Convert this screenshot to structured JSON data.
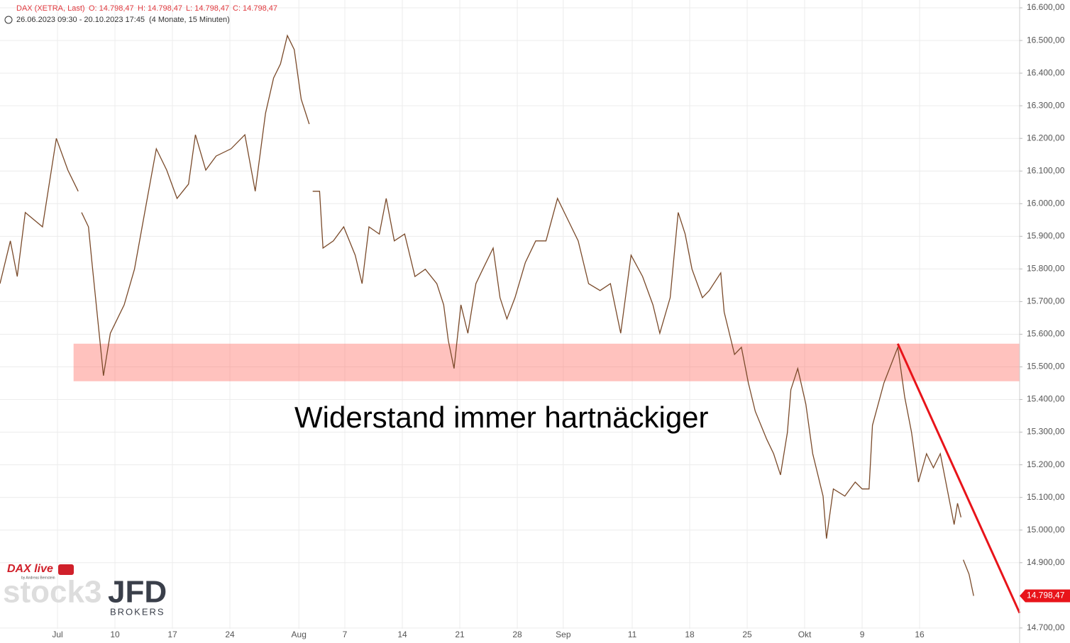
{
  "chart_data": {
    "type": "line",
    "title": "DAX (XETRA, Last)",
    "ohlc": [
      "O: 14.798,47",
      "H: 14.798,47",
      "L: 14.798,47",
      "C: 14.798,47"
    ],
    "subtitle": "26.06.2023 09:30 - 20.10.2023 17:45",
    "period": "(4 Monate, 15 Minuten)",
    "annotation": "Widerstand immer hartnäckiger",
    "logos": [
      "DAX live",
      "by Andreas Bernstein",
      "stock3",
      "JFD",
      "BROKERS"
    ],
    "x": [
      0,
      0.9,
      1.5,
      2.2,
      3.7,
      4.9,
      5.9,
      6.8,
      7.0,
      7.1,
      7.7,
      8.0,
      9.0,
      9.6,
      10.8,
      11.7,
      12.7,
      13.6,
      14.5,
      15.4,
      16.4,
      17.0,
      17.9,
      18.8,
      20.1,
      21.3,
      22.2,
      23.1,
      23.8,
      24.4,
      25.0,
      25.6,
      26.2,
      26.9,
      27.0,
      27.2,
      27.8,
      28.1,
      29.0,
      29.9,
      30.9,
      31.5,
      32.1,
      33.0,
      33.6,
      34.3,
      35.2,
      36.1,
      37.0,
      38.0,
      38.6,
      39.0,
      39.5,
      40.1,
      40.7,
      41.4,
      42.0,
      42.9,
      43.5,
      44.1,
      44.8,
      45.7,
      46.6,
      47.5,
      48.5,
      49.4,
      50.3,
      51.2,
      52.2,
      53.1,
      54.0,
      54.9,
      55.9,
      56.8,
      57.4,
      58.3,
      59.0,
      59.6,
      60.2,
      61.1,
      61.7,
      62.7,
      63.0,
      63.9,
      64.5,
      65.1,
      65.7,
      66.7,
      67.3,
      67.9,
      68.5,
      68.8,
      69.4,
      70.1,
      70.7,
      71.6,
      71.9,
      72.5,
      73.5,
      74.4,
      75.0,
      75.6,
      75.9,
      76.9,
      78.1,
      78.7,
      79.3,
      79.9,
      80.6,
      81.2,
      81.8,
      82.4,
      83.0,
      83.3,
      83.6,
      83.7,
      83.8,
      84.3,
      84.7
    ],
    "series": [
      {
        "color": "#7a4a2a",
        "values": [
          15755,
          15886,
          15777,
          15973,
          15929,
          16200,
          16103,
          16038,
          null,
          15973,
          15929,
          15820,
          15473,
          15603,
          15690,
          15799,
          15994,
          16168,
          16103,
          16016,
          16060,
          16211,
          16103,
          16146,
          16168,
          16211,
          16038,
          16277,
          16385,
          16428,
          16515,
          16472,
          16320,
          16244,
          null,
          16038,
          16038,
          15864,
          15886,
          15929,
          15842,
          15755,
          15929,
          15907,
          16016,
          15886,
          15907,
          15777,
          15799,
          15755,
          15690,
          15581,
          15495,
          15690,
          15603,
          15755,
          15799,
          15864,
          15712,
          15647,
          15712,
          15820,
          15886,
          15886,
          16016,
          15951,
          15886,
          15755,
          15734,
          15755,
          15603,
          15842,
          15777,
          15690,
          15603,
          15712,
          15973,
          15907,
          15799,
          15712,
          15734,
          15788,
          15668,
          15538,
          15560,
          15451,
          15364,
          15278,
          15234,
          15169,
          15299,
          15430,
          15495,
          15386,
          15234,
          15104,
          14974,
          15126,
          15104,
          15147,
          15126,
          15126,
          15321,
          15451,
          15560,
          15408,
          15299,
          15147,
          15234,
          15191,
          15234,
          15126,
          15017,
          15082,
          15039,
          null,
          14909,
          14865,
          14798.47
        ]
      }
    ],
    "last_value": 14798.47,
    "last_label": "14.798,47",
    "last_color": "#e8141a",
    "band": {
      "x": [
        6.4,
        88.7
      ],
      "y": [
        15456,
        15571
      ],
      "color": "rgba(255,120,110,0.45)"
    },
    "trendline": {
      "x": [
        78.1,
        88.7
      ],
      "y": [
        15571,
        14746
      ],
      "color": "#e8141a"
    },
    "xlim": [
      0,
      88.7
    ],
    "ylim": [
      14654,
      16624
    ],
    "grid": true,
    "xticks": [
      {
        "value": 5,
        "label": "Jul"
      },
      {
        "value": 10,
        "label": "10"
      },
      {
        "value": 15,
        "label": "17"
      },
      {
        "value": 20,
        "label": "24"
      },
      {
        "value": 26,
        "label": "Aug"
      },
      {
        "value": 30,
        "label": "7"
      },
      {
        "value": 35,
        "label": "14"
      },
      {
        "value": 40,
        "label": "21"
      },
      {
        "value": 45,
        "label": "28"
      },
      {
        "value": 49,
        "label": "Sep"
      },
      {
        "value": 55,
        "label": "11"
      },
      {
        "value": 60,
        "label": "18"
      },
      {
        "value": 65,
        "label": "25"
      },
      {
        "value": 70,
        "label": "Okt"
      },
      {
        "value": 75,
        "label": "9"
      },
      {
        "value": 80,
        "label": "16"
      }
    ],
    "yticks": [
      {
        "value": 14700,
        "label": "14.700,00"
      },
      {
        "value": 14900,
        "label": "14.900,00"
      },
      {
        "value": 15000,
        "label": "15.000,00"
      },
      {
        "value": 15100,
        "label": "15.100,00"
      },
      {
        "value": 15200,
        "label": "15.200,00"
      },
      {
        "value": 15300,
        "label": "15.300,00"
      },
      {
        "value": 15400,
        "label": "15.400,00"
      },
      {
        "value": 15500,
        "label": "15.500,00"
      },
      {
        "value": 15600,
        "label": "15.600,00"
      },
      {
        "value": 15700,
        "label": "15.700,00"
      },
      {
        "value": 15800,
        "label": "15.800,00"
      },
      {
        "value": 15900,
        "label": "15.900,00"
      },
      {
        "value": 16000,
        "label": "16.000,00"
      },
      {
        "value": 16100,
        "label": "16.100,00"
      },
      {
        "value": 16200,
        "label": "16.200,00"
      },
      {
        "value": 16300,
        "label": "16.300,00"
      },
      {
        "value": 16400,
        "label": "16.400,00"
      },
      {
        "value": 16500,
        "label": "16.500,00"
      },
      {
        "value": 16600,
        "label": "16.600,00"
      }
    ]
  }
}
